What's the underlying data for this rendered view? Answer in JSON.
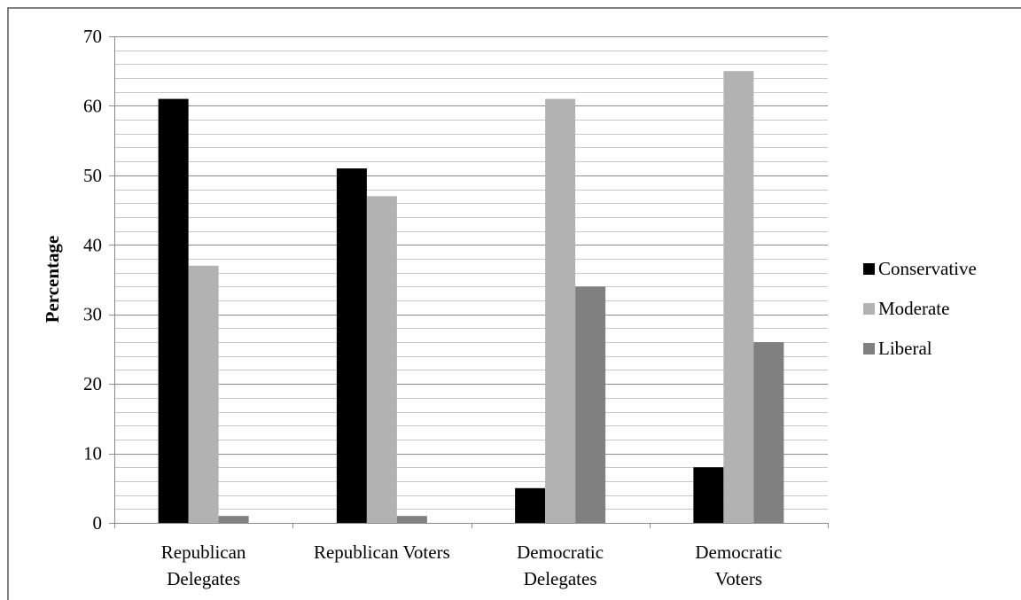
{
  "chart_data": {
    "type": "bar",
    "title": "",
    "xlabel": "",
    "ylabel": "Percentage",
    "ylim": [
      0,
      70
    ],
    "yticks": [
      0,
      10,
      20,
      30,
      40,
      50,
      60,
      70
    ],
    "minor_grid_step": 2,
    "grid": true,
    "legend_position": "right",
    "categories": [
      [
        "Republican",
        "Delegates"
      ],
      [
        "Republican Voters"
      ],
      [
        "Democratic",
        "Delegates"
      ],
      [
        "Democratic",
        "Voters"
      ]
    ],
    "series": [
      {
        "name": "Conservative",
        "color": "#000000",
        "values": [
          61,
          51,
          5,
          8
        ]
      },
      {
        "name": "Moderate",
        "color": "#b2b2b2",
        "values": [
          37,
          47,
          61,
          65
        ]
      },
      {
        "name": "Liberal",
        "color": "#808080",
        "values": [
          1,
          1,
          34,
          26
        ]
      }
    ]
  }
}
